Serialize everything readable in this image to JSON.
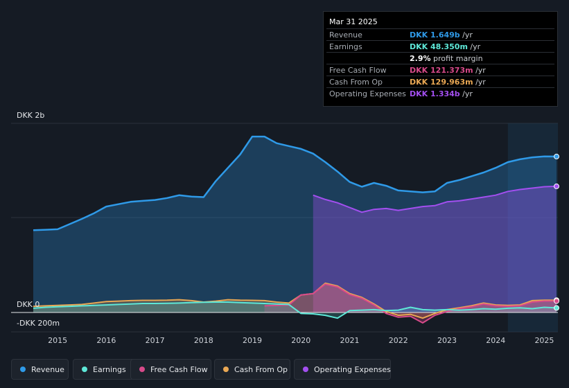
{
  "colors": {
    "revenue": "#2f9ae8",
    "earnings": "#5ee8d8",
    "free_cash_flow": "#d84a8a",
    "cash_from_op": "#eaa854",
    "operating_expenses": "#a34ff0"
  },
  "tooltip": {
    "date": "Mar 31 2025",
    "rows": [
      {
        "label": "Revenue",
        "value": "DKK 1.649b",
        "unit": " /yr",
        "key": "revenue"
      },
      {
        "label": "Earnings",
        "value": "DKK 48.350m",
        "unit": " /yr",
        "key": "earnings"
      },
      {
        "label": "",
        "value": "2.9%",
        "unit": " profit margin",
        "key": "margin"
      },
      {
        "label": "Free Cash Flow",
        "value": "DKK 121.373m",
        "unit": " /yr",
        "key": "free_cash_flow"
      },
      {
        "label": "Cash From Op",
        "value": "DKK 129.963m",
        "unit": " /yr",
        "key": "cash_from_op"
      },
      {
        "label": "Operating Expenses",
        "value": "DKK 1.334b",
        "unit": " /yr",
        "key": "operating_expenses"
      }
    ]
  },
  "legend": [
    {
      "label": "Revenue",
      "key": "revenue"
    },
    {
      "label": "Earnings",
      "key": "earnings"
    },
    {
      "label": "Free Cash Flow",
      "key": "free_cash_flow"
    },
    {
      "label": "Cash From Op",
      "key": "cash_from_op"
    },
    {
      "label": "Operating Expenses",
      "key": "operating_expenses"
    }
  ],
  "chart_data": {
    "type": "area",
    "title": "",
    "y_axis_labels": [
      "DKK 2b",
      "DKK 0",
      "-DKK 200m"
    ],
    "ylim": [
      -200,
      2000
    ],
    "xlim": [
      2014.5,
      2025.25
    ],
    "x_ticks": [
      "2015",
      "2016",
      "2017",
      "2018",
      "2019",
      "2020",
      "2021",
      "2022",
      "2023",
      "2024",
      "2025"
    ],
    "highlight_range": [
      2024.25,
      2025.25
    ],
    "series": [
      {
        "name": "Revenue",
        "key": "revenue",
        "points": [
          [
            2014.5,
            870
          ],
          [
            2014.75,
            875
          ],
          [
            2015.0,
            880
          ],
          [
            2015.25,
            935
          ],
          [
            2015.5,
            990
          ],
          [
            2015.75,
            1050
          ],
          [
            2016.0,
            1120
          ],
          [
            2016.25,
            1145
          ],
          [
            2016.5,
            1170
          ],
          [
            2016.75,
            1180
          ],
          [
            2017.0,
            1190
          ],
          [
            2017.25,
            1210
          ],
          [
            2017.5,
            1240
          ],
          [
            2017.75,
            1225
          ],
          [
            2018.0,
            1220
          ],
          [
            2018.25,
            1390
          ],
          [
            2018.5,
            1530
          ],
          [
            2018.75,
            1670
          ],
          [
            2019.0,
            1860
          ],
          [
            2019.25,
            1860
          ],
          [
            2019.5,
            1790
          ],
          [
            2019.75,
            1760
          ],
          [
            2020.0,
            1730
          ],
          [
            2020.25,
            1680
          ],
          [
            2020.5,
            1590
          ],
          [
            2020.75,
            1490
          ],
          [
            2021.0,
            1380
          ],
          [
            2021.25,
            1330
          ],
          [
            2021.5,
            1370
          ],
          [
            2021.75,
            1340
          ],
          [
            2022.0,
            1290
          ],
          [
            2022.25,
            1280
          ],
          [
            2022.5,
            1270
          ],
          [
            2022.75,
            1280
          ],
          [
            2023.0,
            1370
          ],
          [
            2023.25,
            1400
          ],
          [
            2023.5,
            1440
          ],
          [
            2023.75,
            1480
          ],
          [
            2024.0,
            1530
          ],
          [
            2024.25,
            1590
          ],
          [
            2024.5,
            1620
          ],
          [
            2024.75,
            1640
          ],
          [
            2025.0,
            1650
          ],
          [
            2025.25,
            1649
          ]
        ]
      },
      {
        "name": "Operating Expenses",
        "key": "operating_expenses",
        "points": [
          [
            2020.25,
            1240
          ],
          [
            2020.5,
            1195
          ],
          [
            2020.75,
            1160
          ],
          [
            2021.0,
            1110
          ],
          [
            2021.25,
            1060
          ],
          [
            2021.5,
            1090
          ],
          [
            2021.75,
            1100
          ],
          [
            2022.0,
            1080
          ],
          [
            2022.25,
            1100
          ],
          [
            2022.5,
            1120
          ],
          [
            2022.75,
            1130
          ],
          [
            2023.0,
            1170
          ],
          [
            2023.25,
            1180
          ],
          [
            2023.5,
            1200
          ],
          [
            2023.75,
            1220
          ],
          [
            2024.0,
            1240
          ],
          [
            2024.25,
            1280
          ],
          [
            2024.5,
            1300
          ],
          [
            2024.75,
            1315
          ],
          [
            2025.0,
            1330
          ],
          [
            2025.25,
            1334
          ]
        ]
      },
      {
        "name": "Cash From Op",
        "key": "cash_from_op",
        "points": [
          [
            2014.5,
            65
          ],
          [
            2014.75,
            70
          ],
          [
            2015.0,
            75
          ],
          [
            2015.25,
            80
          ],
          [
            2015.5,
            85
          ],
          [
            2015.75,
            100
          ],
          [
            2016.0,
            115
          ],
          [
            2016.25,
            120
          ],
          [
            2016.5,
            125
          ],
          [
            2016.75,
            128
          ],
          [
            2017.0,
            128
          ],
          [
            2017.25,
            130
          ],
          [
            2017.5,
            135
          ],
          [
            2017.75,
            125
          ],
          [
            2018.0,
            110
          ],
          [
            2018.25,
            120
          ],
          [
            2018.5,
            135
          ],
          [
            2018.75,
            130
          ],
          [
            2019.0,
            128
          ],
          [
            2019.25,
            125
          ],
          [
            2019.5,
            110
          ],
          [
            2019.75,
            100
          ],
          [
            2020.0,
            185
          ],
          [
            2020.25,
            200
          ],
          [
            2020.5,
            310
          ],
          [
            2020.75,
            280
          ],
          [
            2021.0,
            200
          ],
          [
            2021.25,
            160
          ],
          [
            2021.5,
            90
          ],
          [
            2021.75,
            10
          ],
          [
            2022.0,
            -30
          ],
          [
            2022.25,
            -20
          ],
          [
            2022.5,
            -60
          ],
          [
            2022.75,
            -10
          ],
          [
            2023.0,
            30
          ],
          [
            2023.25,
            50
          ],
          [
            2023.5,
            70
          ],
          [
            2023.75,
            100
          ],
          [
            2024.0,
            80
          ],
          [
            2024.25,
            75
          ],
          [
            2024.5,
            80
          ],
          [
            2024.75,
            125
          ],
          [
            2025.0,
            130
          ],
          [
            2025.25,
            130
          ]
        ]
      },
      {
        "name": "Free Cash Flow",
        "key": "free_cash_flow",
        "points": [
          [
            2019.25,
            70
          ],
          [
            2019.5,
            75
          ],
          [
            2019.75,
            80
          ],
          [
            2020.0,
            185
          ],
          [
            2020.25,
            200
          ],
          [
            2020.5,
            300
          ],
          [
            2020.75,
            270
          ],
          [
            2021.0,
            190
          ],
          [
            2021.25,
            150
          ],
          [
            2021.5,
            80
          ],
          [
            2021.75,
            -10
          ],
          [
            2022.0,
            -50
          ],
          [
            2022.25,
            -40
          ],
          [
            2022.5,
            -110
          ],
          [
            2022.75,
            -30
          ],
          [
            2023.0,
            10
          ],
          [
            2023.25,
            40
          ],
          [
            2023.5,
            60
          ],
          [
            2023.75,
            90
          ],
          [
            2024.0,
            70
          ],
          [
            2024.25,
            65
          ],
          [
            2024.5,
            70
          ],
          [
            2024.75,
            110
          ],
          [
            2025.0,
            121
          ],
          [
            2025.25,
            121
          ]
        ]
      },
      {
        "name": "Earnings",
        "key": "earnings",
        "points": [
          [
            2014.5,
            45
          ],
          [
            2014.75,
            55
          ],
          [
            2015.0,
            60
          ],
          [
            2015.25,
            65
          ],
          [
            2015.5,
            70
          ],
          [
            2015.75,
            75
          ],
          [
            2016.0,
            80
          ],
          [
            2016.25,
            85
          ],
          [
            2016.5,
            90
          ],
          [
            2016.75,
            95
          ],
          [
            2017.0,
            95
          ],
          [
            2017.25,
            97
          ],
          [
            2017.5,
            100
          ],
          [
            2017.75,
            105
          ],
          [
            2018.0,
            108
          ],
          [
            2018.25,
            110
          ],
          [
            2018.5,
            110
          ],
          [
            2018.75,
            105
          ],
          [
            2019.0,
            100
          ],
          [
            2019.25,
            95
          ],
          [
            2019.5,
            90
          ],
          [
            2019.75,
            85
          ],
          [
            2020.0,
            -10
          ],
          [
            2020.25,
            -15
          ],
          [
            2020.5,
            -30
          ],
          [
            2020.75,
            -60
          ],
          [
            2021.0,
            20
          ],
          [
            2021.25,
            25
          ],
          [
            2021.5,
            30
          ],
          [
            2021.75,
            20
          ],
          [
            2022.0,
            25
          ],
          [
            2022.25,
            55
          ],
          [
            2022.5,
            30
          ],
          [
            2022.75,
            25
          ],
          [
            2023.0,
            30
          ],
          [
            2023.25,
            25
          ],
          [
            2023.5,
            30
          ],
          [
            2023.75,
            40
          ],
          [
            2024.0,
            35
          ],
          [
            2024.25,
            45
          ],
          [
            2024.5,
            50
          ],
          [
            2024.75,
            40
          ],
          [
            2025.0,
            55
          ],
          [
            2025.25,
            48
          ]
        ]
      }
    ]
  }
}
